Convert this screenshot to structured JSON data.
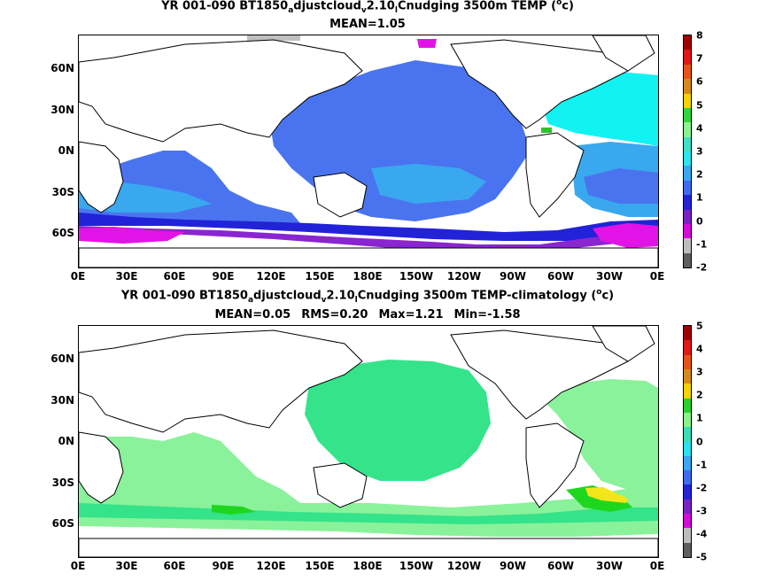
{
  "top": {
    "title_parts": [
      "YR 001-090 BT1850",
      "a",
      "djustcloud",
      "v",
      "2.10",
      "l",
      "Cnudging 3500m TEMP (",
      "o",
      "c)"
    ],
    "subtitle": "MEAN=1.05",
    "colorbar_labels": [
      "8",
      "7",
      "6",
      "5",
      "4",
      "3",
      "2",
      "1",
      "0",
      "-1",
      "-2"
    ],
    "colorbar_colors": [
      "#a10000",
      "#e01818",
      "#e8531a",
      "#d68a1e",
      "#f5d300",
      "#31d63b",
      "#8af58f",
      "#42e0c5",
      "#2be6f0",
      "#3ca6f2",
      "#3f6cf0",
      "#2424d6",
      "#7a22c4",
      "#d40ed8",
      "#bdbdbd",
      "#5e5e5e"
    ],
    "field_colors": {
      "main": "#4a74ef",
      "cold": "#2222d8",
      "purple": "#8a25d2",
      "magenta": "#e213e6",
      "cyan": "#12f2f2",
      "light": "#3aa8ef",
      "green": "#2cc52c",
      "gray": "#c0c0c0"
    }
  },
  "bottom": {
    "title_parts": [
      "YR 001-090 BT1850",
      "a",
      "djustcloud",
      "v",
      "2.10",
      "l",
      "Cnudging 3500m TEMP-climatology (",
      "o",
      "c)"
    ],
    "stats": [
      "MEAN=0.05",
      "RMS=0.20",
      "Max=1.21",
      "Min=-1.58"
    ],
    "colorbar_labels": [
      "5",
      "4",
      "3",
      "2",
      "1",
      "0",
      "-1",
      "-2",
      "-3",
      "-4",
      "-5"
    ],
    "colorbar_colors": [
      "#a10000",
      "#e01818",
      "#e8531a",
      "#d68a1e",
      "#f5d300",
      "#2ad12a",
      "#8cf28a",
      "#39e0b6",
      "#2ae3f0",
      "#3ca6f2",
      "#3f6cf0",
      "#2424d6",
      "#7a22c4",
      "#d40ed8",
      "#bdbdbd",
      "#5e5e5e"
    ],
    "field_colors": {
      "main": "#34e38a",
      "light": "#8af29a",
      "green": "#1fd61f",
      "yellow": "#f2e61a"
    }
  },
  "axes": {
    "lat_labels": [
      "60N",
      "30N",
      "0N",
      "30S",
      "60S"
    ],
    "lon_labels": [
      "0E",
      "30E",
      "60E",
      "90E",
      "120E",
      "150E",
      "180E",
      "150W",
      "120W",
      "90W",
      "60W",
      "30W",
      "0E"
    ]
  }
}
